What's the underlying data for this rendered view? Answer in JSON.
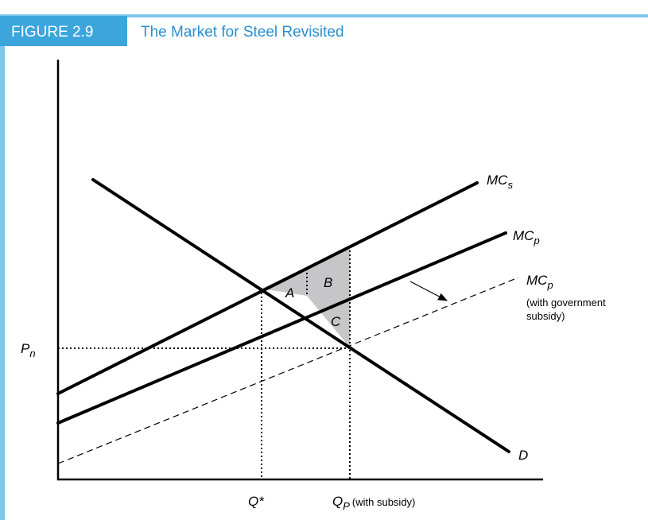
{
  "header": {
    "figure": "FIGURE 2.9",
    "title": "The Market for Steel Revisited"
  },
  "labels": {
    "mc_s": {
      "main": "MC",
      "sub": "s"
    },
    "mc_p": {
      "main": "MC",
      "sub": "p"
    },
    "mc_p_subsidy": {
      "main": "MC",
      "sub": "p",
      "note_1": "(with government",
      "note_2": "subsidy)"
    },
    "demand": "D",
    "p_n": {
      "main": "P",
      "sub": "n"
    },
    "q_star": "Q*",
    "q_p": {
      "main": "Q",
      "sub": "P",
      "note": "(with subsidy)"
    },
    "area_a": "A",
    "area_b": "B",
    "area_c": "C"
  }
}
